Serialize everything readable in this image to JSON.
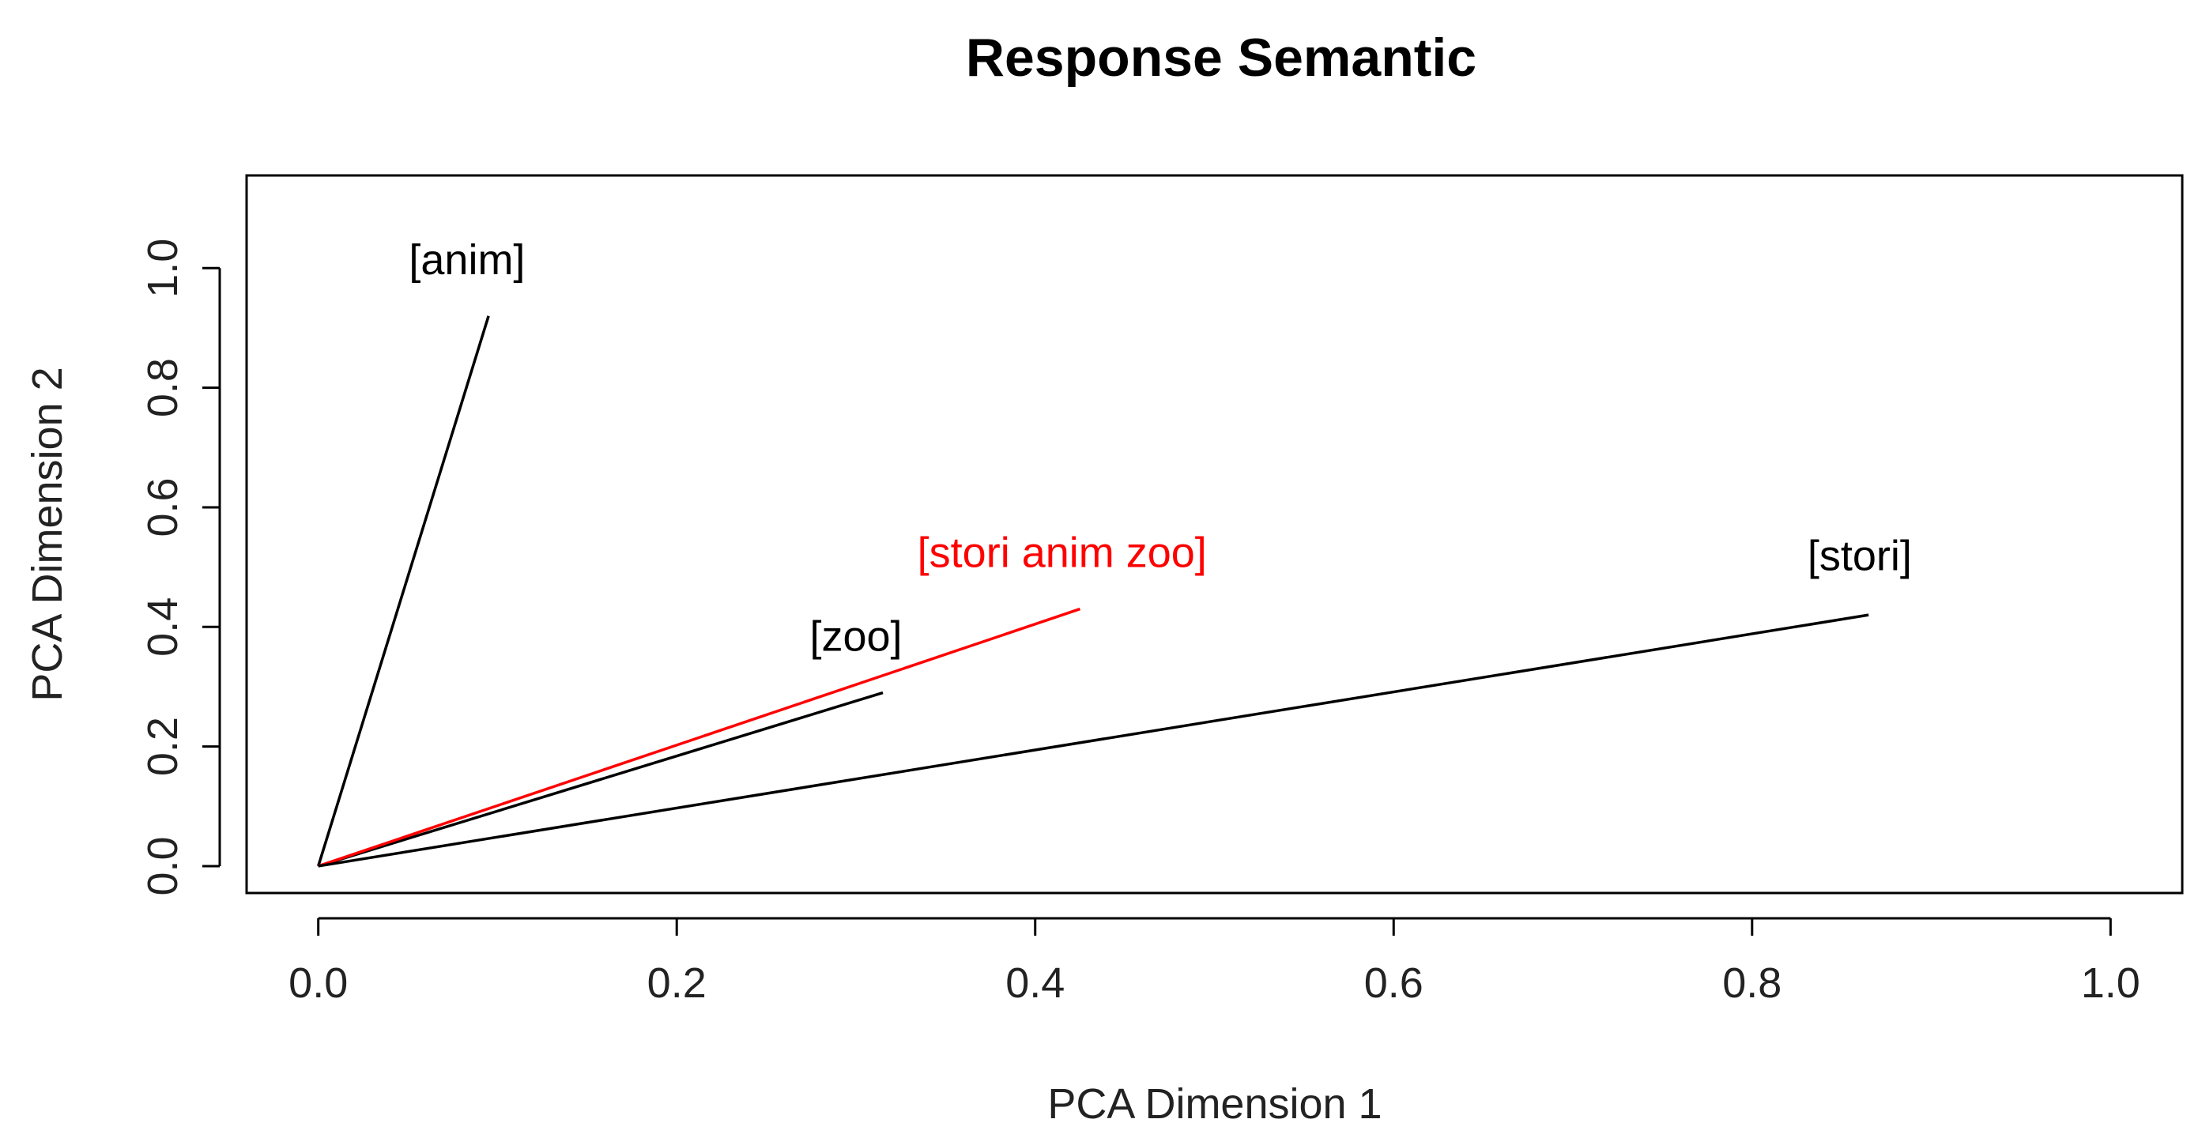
{
  "chart_data": {
    "type": "line",
    "title": "Response Semantic",
    "xlabel": "PCA Dimension 1",
    "ylabel": "PCA Dimension 2",
    "xlim": [
      -0.04,
      1.04
    ],
    "ylim": [
      -0.045,
      1.155
    ],
    "grid": false,
    "legend": "none",
    "x_ticks": [
      0.0,
      0.2,
      0.4,
      0.6,
      0.8,
      1.0
    ],
    "x_tick_labels": [
      "0.0",
      "0.2",
      "0.4",
      "0.6",
      "0.8",
      "1.0"
    ],
    "y_ticks": [
      0.0,
      0.2,
      0.4,
      0.6,
      0.8,
      1.0
    ],
    "y_tick_labels": [
      "0.0",
      "0.2",
      "0.4",
      "0.6",
      "0.8",
      "1.0"
    ],
    "series": [
      {
        "name": "[anim]",
        "x": [
          0,
          0.095
        ],
        "y": [
          0,
          0.92
        ],
        "color": "#000000",
        "label_at": [
          0.083,
          0.99
        ]
      },
      {
        "name": "[zoo]",
        "x": [
          0,
          0.315
        ],
        "y": [
          0,
          0.29
        ],
        "color": "#000000",
        "label_at": [
          0.3,
          0.36
        ]
      },
      {
        "name": "[stori anim zoo]",
        "x": [
          0,
          0.425
        ],
        "y": [
          0,
          0.43
        ],
        "color": "#ff0000",
        "label_at": [
          0.415,
          0.5
        ]
      },
      {
        "name": "[stori]",
        "x": [
          0,
          0.865
        ],
        "y": [
          0,
          0.42
        ],
        "color": "#000000",
        "label_at": [
          0.86,
          0.495
        ]
      }
    ]
  }
}
